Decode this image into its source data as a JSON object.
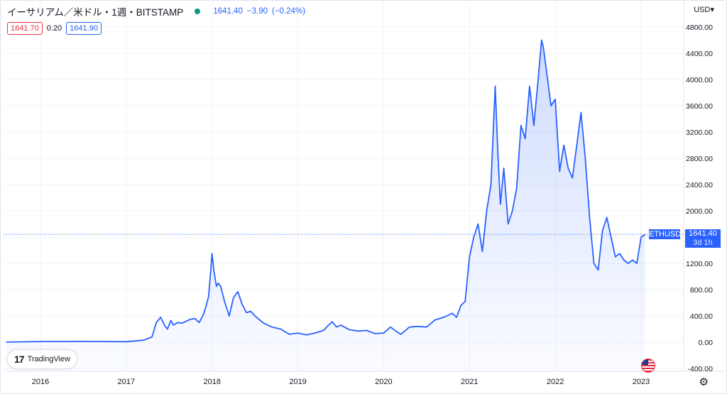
{
  "header": {
    "title": "イーサリアム／米ドル・1週・BITSTAMP",
    "last": "1641.40",
    "change": "−3.90",
    "change_pct": "(−0.24%)"
  },
  "quote": {
    "bid": "1641.70",
    "spread": "0.20",
    "ask": "1641.90"
  },
  "currency_menu": "USD",
  "branding": "TradingView",
  "price_tag": {
    "symbol": "ETHUSD",
    "price": "1641.40",
    "countdown": "3d 1h"
  },
  "colors": {
    "line": "#2962ff",
    "bid": "#f23645",
    "ask": "#2962ff",
    "live_dot": "#089981"
  },
  "icons": [
    "live-dot-icon",
    "chevron-down-icon",
    "tradingview-logo-icon",
    "us-flag-icon",
    "gear-icon"
  ],
  "chart_data": {
    "type": "area",
    "title": "イーサリアム／米ドル・1週・BITSTAMP",
    "xlabel": "",
    "ylabel": "",
    "grid": true,
    "ylim": [
      -400,
      5000
    ],
    "y_ticks": [
      -400,
      0,
      400,
      800,
      1200,
      1600,
      2000,
      2400,
      2800,
      3200,
      3600,
      4000,
      4400,
      4800
    ],
    "y_tick_labels": [
      "-400.00",
      "0.00",
      "400.00",
      "800.00",
      "1200.00",
      "1600.00",
      "2000.00",
      "2400.00",
      "2800.00",
      "3200.00",
      "3600.00",
      "4000.00",
      "4400.00",
      "4800.00"
    ],
    "x_ticks": [
      2016,
      2017,
      2018,
      2019,
      2020,
      2021,
      2022,
      2023
    ],
    "x_tick_labels": [
      "2016",
      "2017",
      "2018",
      "2019",
      "2020",
      "2021",
      "2022",
      "2023"
    ],
    "series": [
      {
        "x": [
          2015.6,
          2016.0,
          2016.5,
          2017.0,
          2017.2,
          2017.3,
          2017.35,
          2017.4,
          2017.45,
          2017.48,
          2017.52,
          2017.55,
          2017.6,
          2017.65,
          2017.7,
          2017.75,
          2017.8,
          2017.85,
          2017.9,
          2017.93,
          2017.96,
          2018.0,
          2018.02,
          2018.05,
          2018.07,
          2018.1,
          2018.15,
          2018.2,
          2018.25,
          2018.3,
          2018.35,
          2018.4,
          2018.45,
          2018.5,
          2018.6,
          2018.7,
          2018.8,
          2018.9,
          2019.0,
          2019.1,
          2019.2,
          2019.3,
          2019.35,
          2019.4,
          2019.45,
          2019.5,
          2019.6,
          2019.7,
          2019.8,
          2019.9,
          2020.0,
          2020.08,
          2020.15,
          2020.2,
          2020.3,
          2020.4,
          2020.5,
          2020.6,
          2020.7,
          2020.8,
          2020.85,
          2020.9,
          2020.95,
          2021.0,
          2021.05,
          2021.1,
          2021.15,
          2021.2,
          2021.25,
          2021.3,
          2021.33,
          2021.36,
          2021.4,
          2021.45,
          2021.5,
          2021.55,
          2021.6,
          2021.65,
          2021.7,
          2021.75,
          2021.8,
          2021.84,
          2021.86,
          2021.9,
          2021.95,
          2022.0,
          2022.05,
          2022.1,
          2022.15,
          2022.2,
          2022.25,
          2022.3,
          2022.35,
          2022.4,
          2022.45,
          2022.5,
          2022.55,
          2022.6,
          2022.65,
          2022.7,
          2022.75,
          2022.8,
          2022.85,
          2022.9,
          2022.95,
          2023.0,
          2023.05
        ],
        "y": [
          1,
          10,
          12,
          8,
          30,
          80,
          300,
          380,
          250,
          200,
          330,
          260,
          300,
          290,
          320,
          350,
          360,
          300,
          420,
          550,
          700,
          1350,
          1100,
          850,
          900,
          850,
          600,
          400,
          680,
          770,
          580,
          450,
          470,
          400,
          290,
          230,
          200,
          120,
          140,
          110,
          140,
          180,
          250,
          310,
          230,
          260,
          190,
          170,
          180,
          130,
          140,
          230,
          160,
          120,
          230,
          240,
          230,
          340,
          380,
          440,
          380,
          560,
          620,
          1300,
          1600,
          1800,
          1380,
          2000,
          2400,
          3900,
          2900,
          2100,
          2650,
          1800,
          2000,
          2350,
          3300,
          3100,
          3900,
          3300,
          4000,
          4600,
          4500,
          4100,
          3600,
          3700,
          2600,
          3000,
          2650,
          2500,
          3000,
          3500,
          2800,
          1900,
          1200,
          1100,
          1700,
          1900,
          1600,
          1300,
          1350,
          1250,
          1200,
          1250,
          1200,
          1600,
          1641
        ]
      }
    ]
  }
}
